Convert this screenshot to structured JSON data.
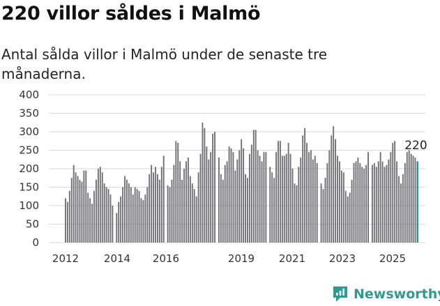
{
  "header": {
    "title": "220 villor såldes i Malmö",
    "subtitle": "Antal sålda villor i Malmö under de senaste tre månaderna."
  },
  "brand": {
    "name": "Newsworthy",
    "color": "#2f9a91"
  },
  "colors": {
    "bar": "#717075",
    "highlight": "#1e9a9a",
    "grid": "#d9d9d9"
  },
  "chart_data": {
    "type": "bar",
    "title": "",
    "xlabel": "",
    "ylabel": "",
    "ylim": [
      0,
      400
    ],
    "yticks": [
      0,
      50,
      100,
      150,
      200,
      250,
      300,
      350,
      400
    ],
    "xticks": [
      "2012",
      "2014",
      "2016",
      "2019",
      "2021",
      "2023",
      "2025"
    ],
    "grid": true,
    "annotation": {
      "text": "220",
      "target": "last"
    },
    "series": [
      {
        "values": [
          120,
          110,
          140,
          175,
          210,
          190,
          180,
          170,
          165,
          195,
          195,
          135,
          120,
          105,
          140,
          170,
          200,
          205,
          190,
          160,
          150,
          145,
          130,
          100
        ]
      },
      {
        "values": [
          80,
          110,
          125,
          150,
          180,
          170,
          160,
          150,
          130,
          150,
          145,
          140,
          120,
          115,
          130,
          150,
          185,
          210,
          190,
          205,
          185,
          170,
          205,
          235
        ]
      },
      {
        "values": [
          155,
          150,
          170,
          210,
          275,
          270,
          220,
          170,
          200,
          220,
          230,
          180,
          160,
          145,
          125,
          190,
          240,
          325,
          310,
          260,
          225,
          245,
          295,
          300
        ]
      },
      {
        "values": [
          230,
          185,
          170,
          210,
          220,
          260,
          255,
          245,
          195,
          225,
          250,
          280,
          255,
          185,
          175,
          240,
          265,
          305,
          305,
          250,
          235,
          220,
          245,
          245
        ]
      },
      {
        "values": [
          205,
          190,
          175,
          245,
          275,
          275,
          235,
          235,
          240,
          270,
          240,
          200,
          160,
          155,
          205,
          230,
          290,
          310,
          270,
          245,
          250,
          225,
          235,
          215
        ]
      },
      {
        "values": [
          160,
          145,
          175,
          215,
          250,
          290,
          315,
          280,
          235,
          220,
          195,
          190,
          140,
          125,
          135,
          170,
          215,
          220,
          230,
          215,
          205,
          200,
          210,
          245
        ]
      },
      {
        "values": [
          210,
          215,
          205,
          220,
          245,
          220,
          205,
          210,
          225,
          245,
          270,
          275,
          220,
          180,
          160,
          185,
          215,
          245,
          250,
          240,
          235,
          230
        ]
      },
      {
        "values": [
          220
        ]
      }
    ]
  },
  "chart_render": {
    "sequence": [
      "s0",
      "s0",
      "s0",
      "s0",
      "s0",
      "s0",
      "s0",
      "s0",
      "s0",
      "s0",
      "s0",
      "s0",
      "s0",
      "s0",
      "s0",
      "s0",
      "s0",
      "s0",
      "s0",
      "s0",
      "s0",
      "s0",
      "s0",
      "s0",
      "gap",
      "s1",
      "s1",
      "s1",
      "s1",
      "s1",
      "s1",
      "s1",
      "s1",
      "s1",
      "s1",
      "s1",
      "s1",
      "s1",
      "s1",
      "s1",
      "s1",
      "s1",
      "s1",
      "s1",
      "s1",
      "s1",
      "s1",
      "s1",
      "s1",
      "gap",
      "s2",
      "s2",
      "s2",
      "s2",
      "s2",
      "s2",
      "s2",
      "s2",
      "s2",
      "s2",
      "s2",
      "s2",
      "s2",
      "s2",
      "s2",
      "s2",
      "s2",
      "s2",
      "s2",
      "s2",
      "s2",
      "s2",
      "s2",
      "s2",
      "gap",
      "s3",
      "s3",
      "s3",
      "s3",
      "s3",
      "s3",
      "s3",
      "s3",
      "s3",
      "s3",
      "s3",
      "s3",
      "s3",
      "s3",
      "s3",
      "s3",
      "s3",
      "s3",
      "s3",
      "s3",
      "s3",
      "s3",
      "s3",
      "s3",
      "gap",
      "s4",
      "s4",
      "s4",
      "s4",
      "s4",
      "s4",
      "s4",
      "s4",
      "s4",
      "s4",
      "s4",
      "s4",
      "s4",
      "s4",
      "s4",
      "s4",
      "s4",
      "s4",
      "s4",
      "s4",
      "s4",
      "s4",
      "s4",
      "s4",
      "gap",
      "s5",
      "s5",
      "s5",
      "s5",
      "s5",
      "s5",
      "s5",
      "s5",
      "s5",
      "s5",
      "s5",
      "s5",
      "s5",
      "s5",
      "s5",
      "s5",
      "s5",
      "s5",
      "s5",
      "s5",
      "s5",
      "s5",
      "s5",
      "s5",
      "gap",
      "s6",
      "s6",
      "s6",
      "s6",
      "s6",
      "s6",
      "s6",
      "s6",
      "s6",
      "s6",
      "s6",
      "s6",
      "s6",
      "s6",
      "s6",
      "s6",
      "s6",
      "s6",
      "s6",
      "s6",
      "s6",
      "s6",
      "s7"
    ]
  }
}
